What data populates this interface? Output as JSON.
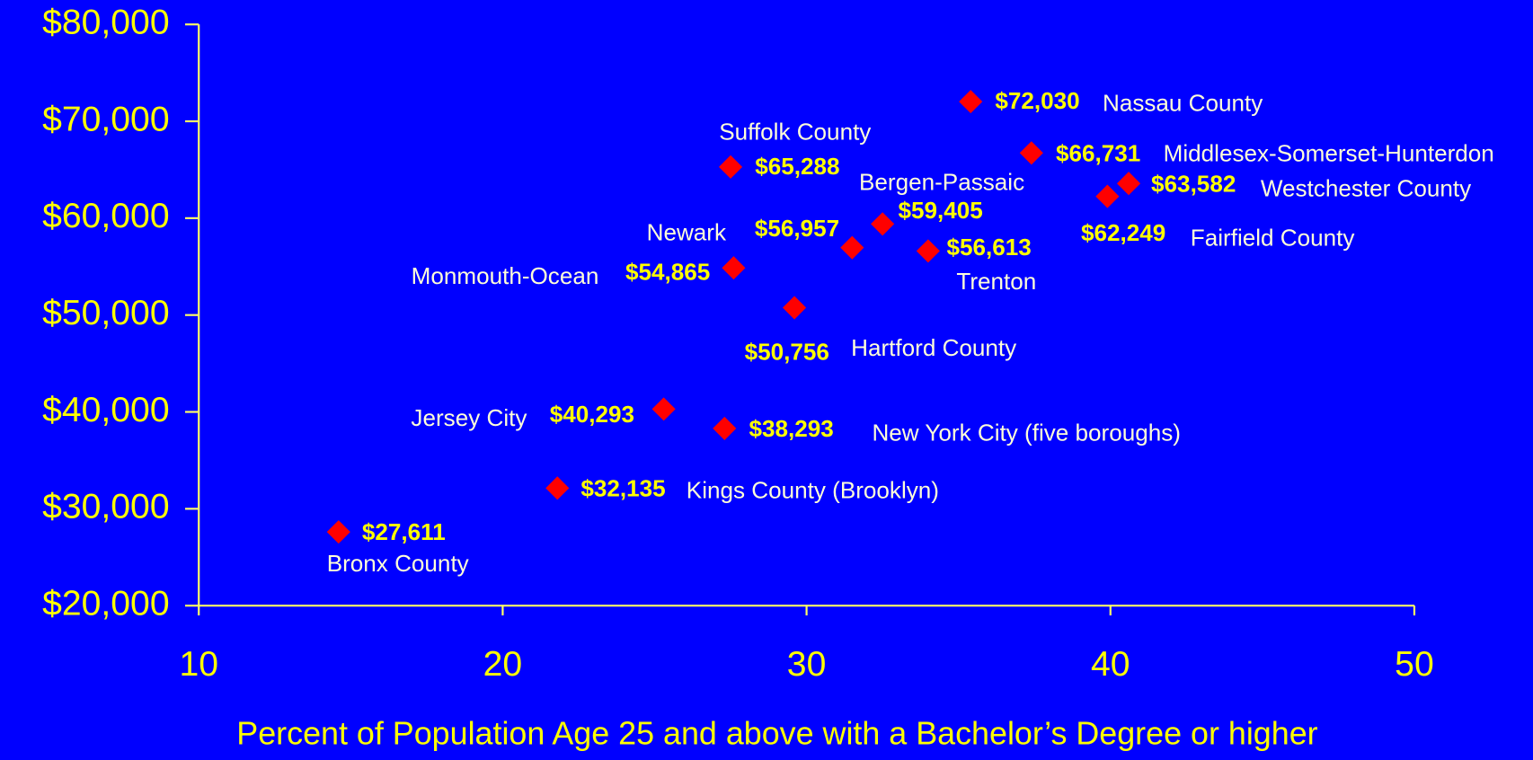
{
  "chart_data": {
    "type": "scatter",
    "xlabel": "Percent of Population Age 25 and above with a Bachelor’s Degree or higher",
    "x": [
      14.6,
      21.8,
      25.3,
      27.3,
      27.6,
      27.5,
      29.6,
      31.5,
      32.5,
      34.0,
      35.4,
      37.4,
      39.9,
      40.6
    ],
    "values": [
      27611,
      32135,
      40293,
      38293,
      54865,
      65288,
      50756,
      56957,
      59405,
      56613,
      72030,
      66731,
      62249,
      63582
    ],
    "value_labels": [
      "$27,611",
      "$32,135",
      "$40,293",
      "$38,293",
      "$54,865",
      "$65,288",
      "$50,756",
      "$56,957",
      "$59,405",
      "$56,613",
      "$72,030",
      "$66,731",
      "$62,249",
      "$63,582"
    ],
    "point_labels": [
      "Bronx County",
      "Kings County (Brooklyn)",
      "Jersey City",
      "New York City (five boroughs)",
      "Monmouth-Ocean",
      "Suffolk County",
      "Hartford County",
      "Newark",
      "Bergen-Passaic",
      "Trenton",
      "Nassau County",
      "Middlesex-Somerset-Hunterdon",
      "Fairfield County",
      "Westchester County"
    ],
    "color": "#ff0000",
    "xlim": [
      10,
      50
    ],
    "xticks": [
      10,
      20,
      30,
      40,
      50
    ],
    "ylim": [
      20000,
      80000
    ],
    "yticks": [
      {
        "value": 20000,
        "label": "$20,000"
      },
      {
        "value": 30000,
        "label": "$30,000"
      },
      {
        "value": 40000,
        "label": "$40,000"
      },
      {
        "value": 50000,
        "label": "$50,000"
      },
      {
        "value": 60000,
        "label": "$60,000"
      },
      {
        "value": 70000,
        "label": "$70,000"
      },
      {
        "value": 80000,
        "label": "$80,000"
      }
    ]
  }
}
